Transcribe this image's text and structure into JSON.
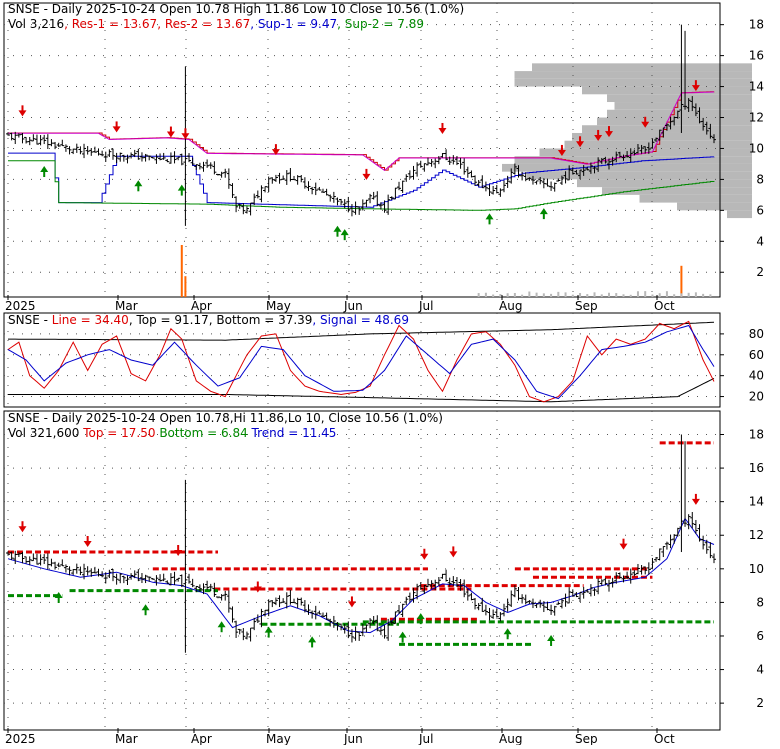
{
  "colors": {
    "resistance": "#dd0000",
    "support": "#008800",
    "sup1": "#0000cc",
    "res_line": "#cc00cc",
    "candle": "#000000",
    "volume": "#ff6600",
    "profile": "#b8b8b8",
    "grid": "#555555"
  },
  "chart_data": [
    {
      "type": "candlestick",
      "panel": "price-with-support-resistance",
      "header": {
        "ticker": "SNSE",
        "desc": " - Daily 2025-10-24 Open 10.78  High 11.86  Low 10  Close 10.56 (1.0%)",
        "vol": "Vol 3,216",
        "res1": "Res-1 = 13.67",
        "res2": "Res-2 = 13.67",
        "sup1": "Sup-1 = 9.47",
        "sup2": "Sup-2 = 7.89"
      },
      "y_ticks": [
        2,
        4,
        6,
        8,
        10,
        12,
        14,
        16,
        18
      ],
      "ylim": [
        0.4,
        19.4
      ],
      "x_ticks": [
        "2025",
        "Mar",
        "Apr",
        "May",
        "Jun",
        "Jul",
        "Aug",
        "Sep",
        "Oct"
      ],
      "close_waypoints": [
        [
          0,
          10.8
        ],
        [
          10,
          10.4
        ],
        [
          20,
          9.8
        ],
        [
          35,
          9.5
        ],
        [
          48,
          9.2
        ],
        [
          55,
          8.9
        ],
        [
          60,
          8.3
        ],
        [
          63,
          6.2
        ],
        [
          66,
          6.0
        ],
        [
          72,
          8.1
        ],
        [
          78,
          8.2
        ],
        [
          85,
          7.4
        ],
        [
          92,
          6.4
        ],
        [
          97,
          6.0
        ],
        [
          100,
          6.8
        ],
        [
          104,
          6.2
        ],
        [
          107,
          7.3
        ],
        [
          113,
          8.8
        ],
        [
          120,
          9.5
        ],
        [
          125,
          8.9
        ],
        [
          130,
          7.7
        ],
        [
          135,
          7.1
        ],
        [
          140,
          8.6
        ],
        [
          145,
          7.8
        ],
        [
          150,
          7.6
        ],
        [
          155,
          8.4
        ],
        [
          160,
          8.8
        ],
        [
          166,
          9.3
        ],
        [
          170,
          9.6
        ],
        [
          176,
          9.9
        ],
        [
          183,
          11.8
        ],
        [
          188,
          13.2
        ],
        [
          191,
          11.8
        ],
        [
          195,
          10.56
        ]
      ],
      "res_line_waypoints": [
        [
          0,
          11.0
        ],
        [
          25,
          11.0
        ],
        [
          28,
          10.6
        ],
        [
          44,
          10.7
        ],
        [
          50,
          10.6
        ],
        [
          55,
          9.7
        ],
        [
          98,
          9.6
        ],
        [
          104,
          8.6
        ],
        [
          108,
          9.4
        ],
        [
          150,
          9.4
        ],
        [
          160,
          9.0
        ],
        [
          170,
          9.5
        ],
        [
          178,
          9.8
        ],
        [
          186,
          13.6
        ],
        [
          195,
          13.67
        ]
      ],
      "sup1_line_waypoints": [
        [
          0,
          9.7
        ],
        [
          12,
          9.7
        ],
        [
          14,
          6.5
        ],
        [
          25,
          6.5
        ],
        [
          30,
          9.5
        ],
        [
          50,
          9.5
        ],
        [
          55,
          6.5
        ],
        [
          100,
          6.2
        ],
        [
          112,
          7.3
        ],
        [
          120,
          8.6
        ],
        [
          130,
          7.5
        ],
        [
          142,
          8.4
        ],
        [
          160,
          8.8
        ],
        [
          175,
          9.2
        ],
        [
          195,
          9.47
        ]
      ],
      "sup2_line_waypoints": [
        [
          0,
          9.2
        ],
        [
          12,
          9.2
        ],
        [
          14,
          6.5
        ],
        [
          55,
          6.4
        ],
        [
          75,
          6.2
        ],
        [
          100,
          6.1
        ],
        [
          130,
          6.0
        ],
        [
          140,
          6.1
        ],
        [
          150,
          6.5
        ],
        [
          170,
          7.2
        ],
        [
          195,
          7.89
        ]
      ],
      "down_arrows": [
        4,
        30,
        45,
        49,
        74,
        99,
        120,
        153,
        158,
        163,
        166,
        176,
        190
      ],
      "up_arrows": [
        10,
        36,
        48,
        91,
        93,
        133,
        148
      ],
      "volume_spikes": [
        [
          48,
          1.0
        ],
        [
          49,
          0.4
        ],
        [
          186,
          0.6
        ]
      ],
      "volume_profile": [
        [
          5.5,
          0.1
        ],
        [
          6.0,
          0.3
        ],
        [
          6.5,
          0.45
        ],
        [
          7.0,
          0.6
        ],
        [
          7.5,
          0.7
        ],
        [
          8.0,
          0.9
        ],
        [
          8.5,
          1.0
        ],
        [
          9.0,
          0.95
        ],
        [
          9.5,
          0.85
        ],
        [
          10.0,
          0.75
        ],
        [
          10.5,
          0.72
        ],
        [
          11.0,
          0.68
        ],
        [
          11.5,
          0.62
        ],
        [
          12.0,
          0.58
        ],
        [
          12.5,
          0.55
        ],
        [
          13.0,
          0.58
        ],
        [
          13.5,
          0.68
        ],
        [
          14.0,
          0.95
        ],
        [
          14.5,
          0.95
        ],
        [
          15.0,
          0.88
        ]
      ]
    },
    {
      "type": "line",
      "panel": "stochastic-oscillator",
      "header": {
        "ticker": "SNSE",
        "line": "Line = 34.40",
        "top": "Top = 91.17",
        "bottom": "Bottom = 37.39",
        "signal": "Signal = 48.69"
      },
      "y_ticks": [
        20,
        40,
        60,
        80
      ],
      "ylim": [
        10,
        100
      ],
      "line_waypoints": [
        [
          0,
          65
        ],
        [
          3,
          72
        ],
        [
          6,
          40
        ],
        [
          10,
          28
        ],
        [
          14,
          45
        ],
        [
          18,
          72
        ],
        [
          22,
          45
        ],
        [
          26,
          70
        ],
        [
          30,
          78
        ],
        [
          34,
          42
        ],
        [
          38,
          35
        ],
        [
          42,
          60
        ],
        [
          45,
          85
        ],
        [
          48,
          75
        ],
        [
          52,
          35
        ],
        [
          56,
          25
        ],
        [
          60,
          20
        ],
        [
          66,
          60
        ],
        [
          70,
          78
        ],
        [
          74,
          80
        ],
        [
          78,
          45
        ],
        [
          82,
          30
        ],
        [
          86,
          25
        ],
        [
          92,
          22
        ],
        [
          96,
          24
        ],
        [
          100,
          30
        ],
        [
          104,
          60
        ],
        [
          108,
          88
        ],
        [
          112,
          75
        ],
        [
          116,
          45
        ],
        [
          120,
          25
        ],
        [
          124,
          55
        ],
        [
          128,
          80
        ],
        [
          132,
          82
        ],
        [
          136,
          70
        ],
        [
          140,
          50
        ],
        [
          144,
          20
        ],
        [
          148,
          15
        ],
        [
          152,
          20
        ],
        [
          156,
          35
        ],
        [
          160,
          78
        ],
        [
          164,
          60
        ],
        [
          168,
          75
        ],
        [
          172,
          70
        ],
        [
          176,
          75
        ],
        [
          180,
          90
        ],
        [
          184,
          85
        ],
        [
          188,
          92
        ],
        [
          192,
          55
        ],
        [
          195,
          34.4
        ]
      ],
      "signal_waypoints": [
        [
          0,
          65
        ],
        [
          5,
          55
        ],
        [
          10,
          35
        ],
        [
          16,
          52
        ],
        [
          22,
          60
        ],
        [
          28,
          65
        ],
        [
          34,
          55
        ],
        [
          40,
          50
        ],
        [
          46,
          72
        ],
        [
          52,
          50
        ],
        [
          58,
          30
        ],
        [
          64,
          38
        ],
        [
          70,
          68
        ],
        [
          76,
          65
        ],
        [
          82,
          40
        ],
        [
          90,
          25
        ],
        [
          98,
          26
        ],
        [
          104,
          45
        ],
        [
          110,
          78
        ],
        [
          116,
          60
        ],
        [
          122,
          42
        ],
        [
          128,
          70
        ],
        [
          134,
          75
        ],
        [
          140,
          55
        ],
        [
          146,
          25
        ],
        [
          152,
          18
        ],
        [
          158,
          40
        ],
        [
          164,
          65
        ],
        [
          170,
          68
        ],
        [
          176,
          72
        ],
        [
          182,
          82
        ],
        [
          188,
          88
        ],
        [
          192,
          65
        ],
        [
          195,
          48.69
        ]
      ],
      "top_band": [
        [
          0,
          75
        ],
        [
          60,
          74
        ],
        [
          100,
          80
        ],
        [
          150,
          84
        ],
        [
          195,
          91.17
        ]
      ],
      "bottom_band": [
        [
          0,
          22
        ],
        [
          60,
          22
        ],
        [
          100,
          19
        ],
        [
          150,
          15
        ],
        [
          185,
          20
        ],
        [
          195,
          37.39
        ]
      ]
    },
    {
      "type": "candlestick",
      "panel": "price-with-trend",
      "header": {
        "ticker": "SNSE",
        "desc": " - Daily 2025-10-24 Open 10.78,Hi 11.86,Lo 10, Close 10.56 (1.0%)",
        "vol": "Vol 321,600",
        "top": "Top = 17.50",
        "bottom": "Bottom = 6.84",
        "trend": "Trend = 11.45"
      },
      "y_ticks": [
        2,
        4,
        6,
        8,
        10,
        12,
        14,
        16,
        18
      ],
      "ylim": [
        0.4,
        19.4
      ],
      "x_ticks": [
        "2025",
        "Mar",
        "Apr",
        "May",
        "Jun",
        "Jul",
        "Aug",
        "Sep",
        "Oct"
      ],
      "resistance_segments": [
        [
          0,
          20,
          11.0
        ],
        [
          20,
          58,
          11.0
        ],
        [
          40,
          116,
          10.0
        ],
        [
          57,
          128,
          8.8
        ],
        [
          114,
          159,
          9.0
        ],
        [
          103,
          130,
          7.0
        ],
        [
          145,
          178,
          9.5
        ],
        [
          140,
          177,
          10.0
        ],
        [
          180,
          195,
          17.5
        ]
      ],
      "support_segments": [
        [
          0,
          15,
          8.4
        ],
        [
          17,
          58,
          8.7
        ],
        [
          70,
          108,
          6.7
        ],
        [
          108,
          145,
          5.5
        ],
        [
          98,
          168,
          6.84
        ],
        [
          165,
          195,
          6.84
        ]
      ],
      "trend_waypoints": [
        [
          0,
          10.6
        ],
        [
          10,
          10.0
        ],
        [
          20,
          9.5
        ],
        [
          30,
          9.8
        ],
        [
          40,
          9.2
        ],
        [
          48,
          9.0
        ],
        [
          55,
          8.5
        ],
        [
          62,
          6.5
        ],
        [
          70,
          7.2
        ],
        [
          78,
          7.8
        ],
        [
          86,
          7.2
        ],
        [
          94,
          6.3
        ],
        [
          100,
          6.2
        ],
        [
          106,
          6.9
        ],
        [
          112,
          8.2
        ],
        [
          120,
          9.1
        ],
        [
          126,
          9.0
        ],
        [
          132,
          8.0
        ],
        [
          138,
          7.4
        ],
        [
          144,
          7.9
        ],
        [
          150,
          8.0
        ],
        [
          156,
          8.4
        ],
        [
          162,
          8.9
        ],
        [
          168,
          9.2
        ],
        [
          176,
          9.5
        ],
        [
          182,
          10.6
        ],
        [
          187,
          13.0
        ],
        [
          191,
          11.8
        ],
        [
          195,
          11.45
        ]
      ],
      "down_arrows": [
        4,
        22,
        47,
        69,
        95,
        115,
        123,
        170,
        190
      ],
      "up_arrows": [
        14,
        38,
        59,
        72,
        84,
        109,
        114,
        138,
        150
      ]
    }
  ]
}
